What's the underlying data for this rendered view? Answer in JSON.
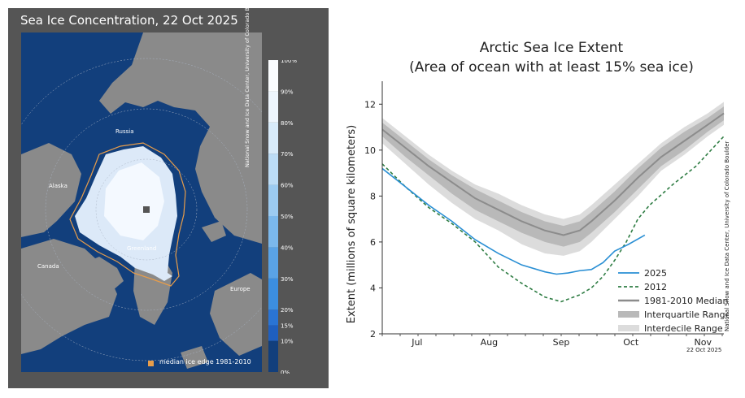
{
  "map": {
    "title": "Sea Ice Concentration, 22 Oct 2025",
    "labels": {
      "russia": "Russia",
      "alaska": "Alaska",
      "canada": "Canada",
      "greenland": "Greenland",
      "europe": "Europe"
    },
    "colorbar_ticks": [
      "0%",
      "10%",
      "15%",
      "20%",
      "30%",
      "40%",
      "50%",
      "60%",
      "70%",
      "80%",
      "90%",
      "100%"
    ],
    "legend_label": "median ice edge 1981-2010",
    "credit": "National Snow and Ice Data Center, University of Colorado Boulder",
    "colors": {
      "ocean": "#123f7c",
      "land": "#8a8a8a",
      "median_edge": "#e89d4a",
      "ice": "#f4f9ff"
    }
  },
  "chart": {
    "credit": "National Snow and Ice Data Center, University of Colorado Boulder",
    "date_stamp": "22 Oct 2025"
  },
  "chart_data": {
    "type": "line",
    "title": "Arctic Sea Ice Extent",
    "subtitle": "(Area of ocean with at least 15% sea ice)",
    "xlabel": "",
    "ylabel": "Extent (millions of square kilometers)",
    "xlim": [
      0,
      147
    ],
    "ylim": [
      2,
      13
    ],
    "yticks": [
      2,
      4,
      6,
      8,
      10,
      12
    ],
    "xticks": [
      {
        "label": "Jul",
        "x": 15
      },
      {
        "label": "Aug",
        "x": 46
      },
      {
        "label": "Sep",
        "x": 77
      },
      {
        "label": "Oct",
        "x": 107
      },
      {
        "label": "Nov",
        "x": 138
      }
    ],
    "legend_position": "bottom-right",
    "series": [
      {
        "name": "2025",
        "color": "#2a8fd4",
        "style": "solid",
        "x": [
          0,
          10,
          20,
          30,
          40,
          50,
          60,
          70,
          75,
          80,
          85,
          90,
          95,
          100,
          106,
          113
        ],
        "y": [
          9.2,
          8.4,
          7.6,
          6.9,
          6.1,
          5.5,
          5.0,
          4.7,
          4.6,
          4.65,
          4.75,
          4.8,
          5.1,
          5.6,
          5.9,
          6.3
        ]
      },
      {
        "name": "2012",
        "color": "#2f7d44",
        "style": "dashed",
        "x": [
          0,
          10,
          20,
          30,
          40,
          50,
          60,
          70,
          77,
          85,
          90,
          95,
          100,
          105,
          110,
          115,
          125,
          135,
          147
        ],
        "y": [
          9.4,
          8.4,
          7.5,
          6.8,
          6.0,
          4.9,
          4.2,
          3.6,
          3.4,
          3.7,
          4.0,
          4.5,
          5.2,
          6.0,
          7.0,
          7.6,
          8.5,
          9.3,
          10.6
        ]
      },
      {
        "name": "1981-2010 Median",
        "color": "#8c8c8c",
        "style": "solid",
        "x": [
          0,
          10,
          20,
          30,
          40,
          50,
          60,
          70,
          78,
          85,
          90,
          100,
          110,
          120,
          130,
          140,
          147
        ],
        "y": [
          10.9,
          10.1,
          9.3,
          8.6,
          7.9,
          7.4,
          6.9,
          6.5,
          6.3,
          6.5,
          6.9,
          7.8,
          8.8,
          9.7,
          10.4,
          11.1,
          11.6
        ]
      }
    ],
    "bands": [
      {
        "name": "Interquartile Range",
        "color": "#b9b9b9",
        "x": [
          0,
          10,
          20,
          30,
          40,
          50,
          60,
          70,
          78,
          85,
          90,
          100,
          110,
          120,
          130,
          140,
          147
        ],
        "lower": [
          10.6,
          9.7,
          8.9,
          8.1,
          7.4,
          6.9,
          6.4,
          6.0,
          5.8,
          6.0,
          6.4,
          7.3,
          8.3,
          9.3,
          10.0,
          10.8,
          11.3
        ],
        "upper": [
          11.2,
          10.4,
          9.6,
          8.9,
          8.3,
          7.8,
          7.3,
          6.9,
          6.7,
          6.9,
          7.3,
          8.2,
          9.2,
          10.1,
          10.8,
          11.4,
          11.9
        ]
      },
      {
        "name": "Interdecile Range",
        "color": "#dcdcdc",
        "x": [
          0,
          10,
          20,
          30,
          40,
          50,
          60,
          70,
          78,
          85,
          90,
          100,
          110,
          120,
          130,
          140,
          147
        ],
        "lower": [
          10.3,
          9.4,
          8.5,
          7.7,
          7.0,
          6.5,
          5.9,
          5.5,
          5.4,
          5.6,
          6.0,
          7.0,
          8.0,
          9.1,
          9.8,
          10.6,
          11.1
        ],
        "upper": [
          11.4,
          10.6,
          9.8,
          9.1,
          8.5,
          8.1,
          7.6,
          7.2,
          7.0,
          7.2,
          7.6,
          8.5,
          9.4,
          10.3,
          11.0,
          11.6,
          12.1
        ]
      }
    ]
  }
}
